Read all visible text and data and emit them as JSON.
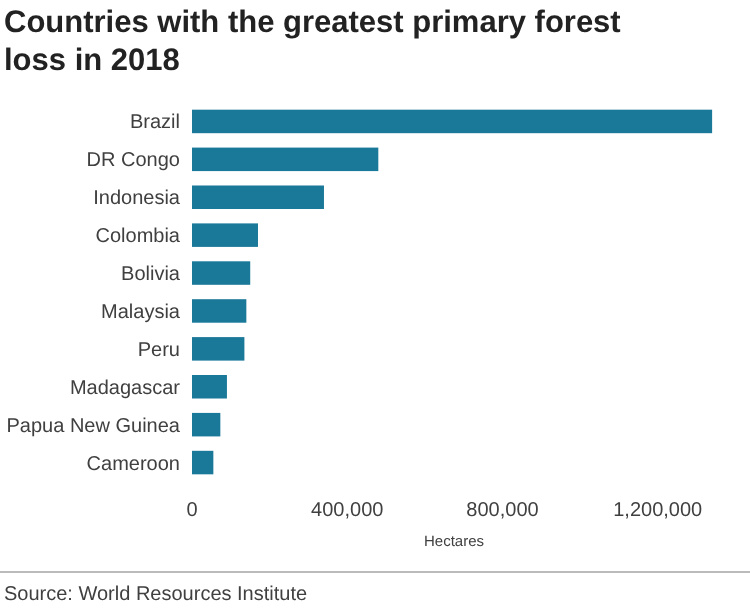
{
  "chart_data": {
    "type": "bar",
    "orientation": "horizontal",
    "title": "Countries with the greatest primary forest loss in 2018",
    "categories": [
      "Brazil",
      "DR Congo",
      "Indonesia",
      "Colombia",
      "Bolivia",
      "Malaysia",
      "Peru",
      "Madagascar",
      "Papua New Guinea",
      "Cameroon"
    ],
    "values": [
      1340000,
      480000,
      340000,
      170000,
      150000,
      140000,
      135000,
      90000,
      73000,
      55000
    ],
    "color": "#1a7899",
    "xlim": [
      0,
      1350000
    ],
    "xticks": [
      0,
      {
        "value": 400000,
        "label": "400,000"
      },
      {
        "value": 800000,
        "label": "800,000"
      },
      {
        "value": 1200000,
        "label": "1,200,000"
      }
    ],
    "xlabel": "Hectares",
    "annotations": [
      "Source: World Resources Institute"
    ]
  }
}
